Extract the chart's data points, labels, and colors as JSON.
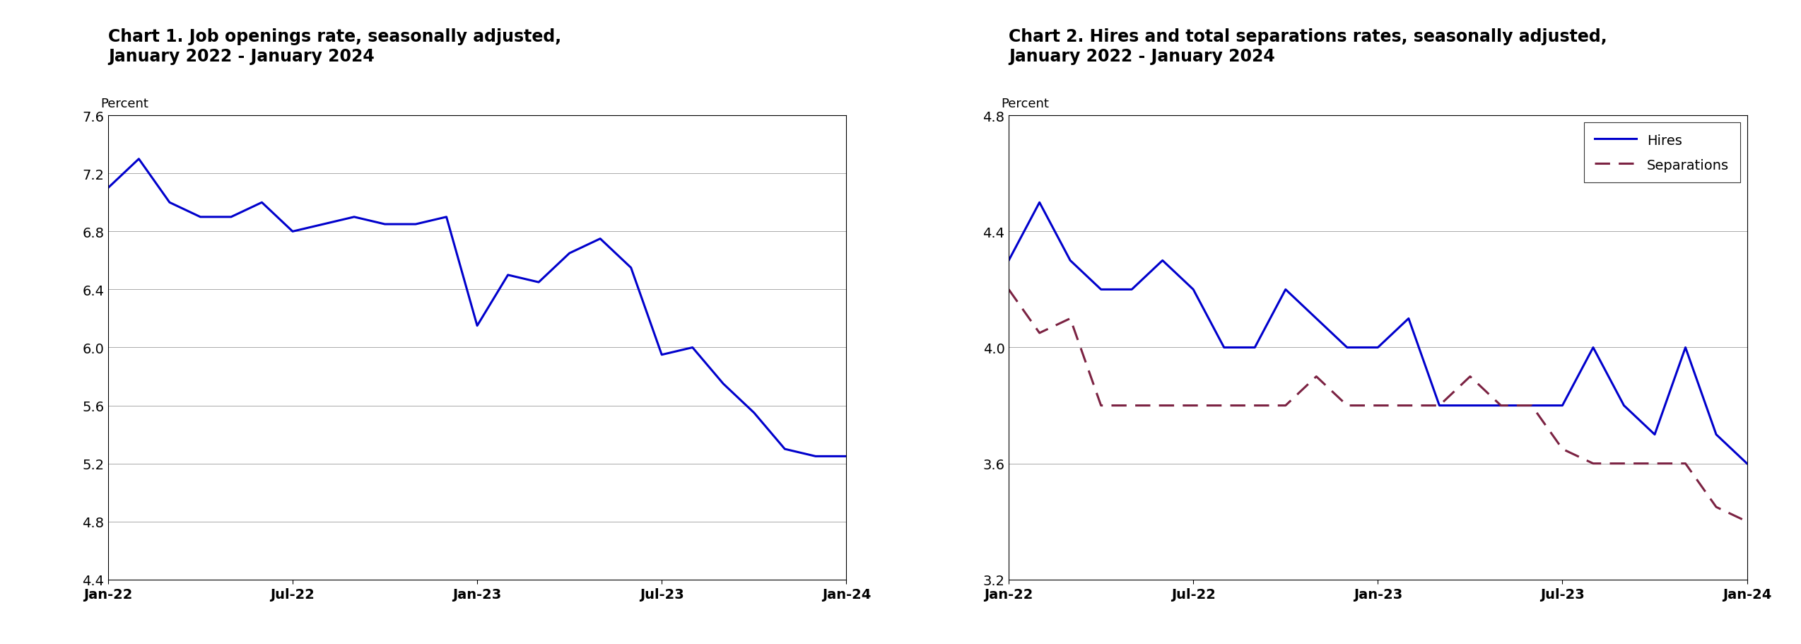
{
  "chart1_title_line1": "Chart 1. Job openings rate, seasonally adjusted,",
  "chart1_title_line2": "January 2022 - January 2024",
  "chart2_title_line1": "Chart 2. Hires and total separations rates, seasonally adjusted,",
  "chart2_title_line2": "January 2022 - January 2024",
  "ylabel": "Percent",
  "chart1_ylim": [
    4.4,
    7.6
  ],
  "chart1_yticks": [
    4.4,
    4.8,
    5.2,
    5.6,
    6.0,
    6.4,
    6.8,
    7.2,
    7.6
  ],
  "chart2_ylim": [
    3.2,
    4.8
  ],
  "chart2_yticks": [
    3.2,
    3.6,
    4.0,
    4.4,
    4.8
  ],
  "xtick_labels": [
    "Jan-22",
    "Jul-22",
    "Jan-23",
    "Jul-23",
    "Jan-24"
  ],
  "line_color_blue": "#0000CC",
  "line_color_sep": "#7B2242",
  "chart1_data": [
    7.1,
    7.3,
    7.0,
    6.9,
    6.9,
    7.0,
    6.8,
    6.85,
    6.9,
    6.85,
    6.85,
    6.9,
    6.15,
    6.5,
    6.45,
    6.65,
    6.75,
    6.55,
    5.95,
    6.0,
    5.75,
    5.55,
    5.3,
    5.25,
    5.25
  ],
  "chart2_hires": [
    4.3,
    4.5,
    4.3,
    4.2,
    4.2,
    4.3,
    4.2,
    4.0,
    4.0,
    4.2,
    4.1,
    4.0,
    4.0,
    4.1,
    3.8,
    3.8,
    3.8,
    3.8,
    3.8,
    4.0,
    3.8,
    3.7,
    4.0,
    3.7,
    3.6
  ],
  "chart2_sep": [
    4.2,
    4.05,
    4.1,
    3.8,
    3.8,
    3.8,
    3.8,
    3.8,
    3.8,
    3.8,
    3.9,
    3.8,
    3.8,
    3.8,
    3.8,
    3.9,
    3.8,
    3.8,
    3.65,
    3.6,
    3.6,
    3.6,
    3.6,
    3.45,
    3.4
  ]
}
